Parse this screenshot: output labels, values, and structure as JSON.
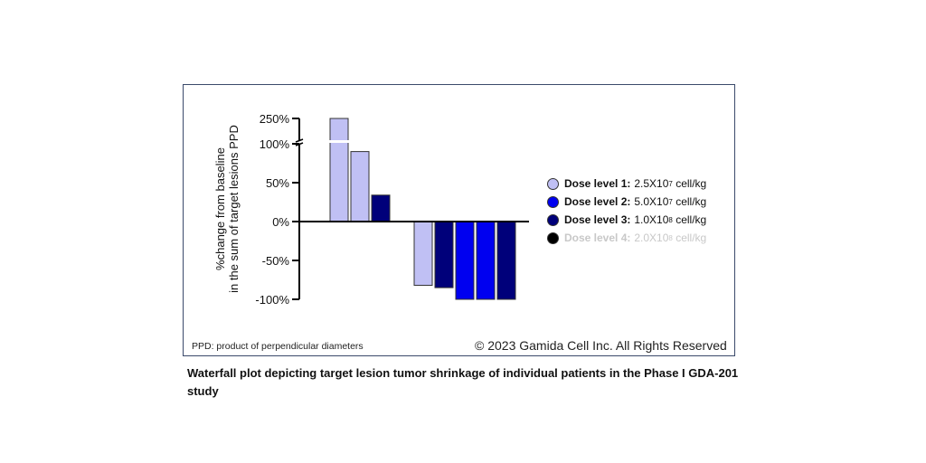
{
  "chart_data": {
    "type": "bar",
    "title": "",
    "xlabel": "",
    "ylabel": [
      "%change from baseline",
      "in the sum of target lesions PPD"
    ],
    "y_ticks": [
      "250%",
      "100%",
      "50%",
      "0%",
      "-50%",
      "-100%"
    ],
    "y_tick_values": [
      250,
      100,
      50,
      0,
      -50,
      -100
    ],
    "ylim": [
      -100,
      250
    ],
    "axis_break": [
      100,
      250
    ],
    "bars": [
      {
        "value": 250,
        "dose": 1
      },
      {
        "value": 90,
        "dose": 1
      },
      {
        "value": 34,
        "dose": 3
      },
      {
        "value": -82,
        "dose": 1
      },
      {
        "value": -85,
        "dose": 3
      },
      {
        "value": -100,
        "dose": 2
      },
      {
        "value": -100,
        "dose": 2
      },
      {
        "value": -100,
        "dose": 3
      }
    ],
    "legend": [
      {
        "label": "Dose level 1:",
        "value": "2.5X10",
        "exp": "7",
        "unit": "cell/kg",
        "color": "#c0c0f4"
      },
      {
        "label": "Dose level 2:",
        "value": "5.0X10",
        "exp": "7",
        "unit": "cell/kg",
        "color": "#0000f0"
      },
      {
        "label": "Dose level 3:",
        "value": "1.0X10",
        "exp": "8",
        "unit": "cell/kg",
        "color": "#00007a"
      },
      {
        "label": "Dose level 4:",
        "value": "2.0X10",
        "exp": "8",
        "unit": "cell/kg",
        "color": "#000000"
      }
    ],
    "legend_position": "right"
  },
  "footnote": "PPD: product of perpendicular diameters",
  "copyright": "© 2023 Gamida Cell Inc. All Rights Reserved",
  "caption": "Waterfall plot depicting target lesion tumor shrinkage of individual patients in the Phase I GDA-201 study"
}
